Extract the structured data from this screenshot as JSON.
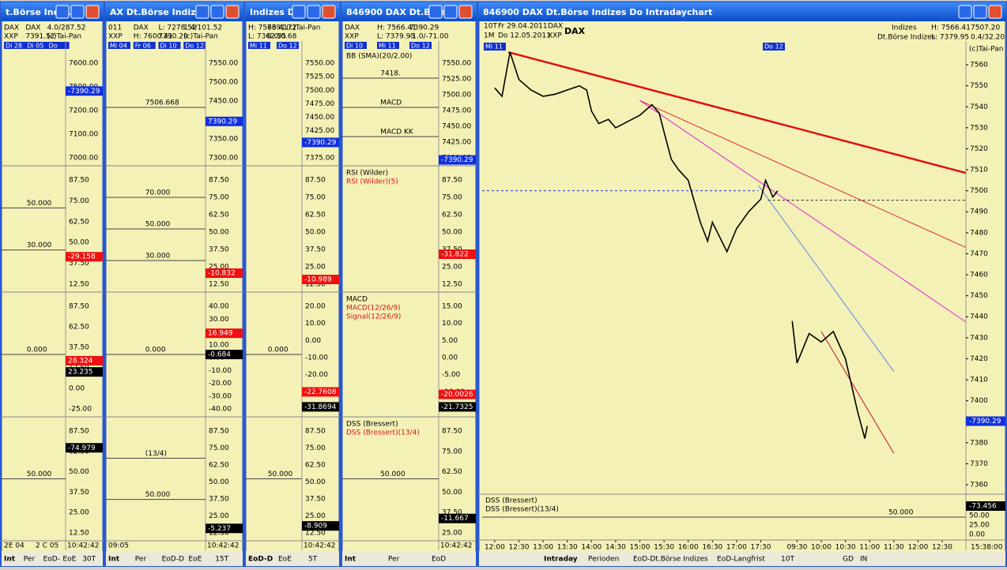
{
  "windows": [
    {
      "title": "t.Börse Indiz...",
      "header": [
        "DAX",
        "XXP",
        "DAX",
        "7391.52",
        "4.0/287.52",
        "(c)Tai-Pan"
      ],
      "dates": [
        "Di 28",
        "Di 05",
        "Do"
      ],
      "panels": [
        {
          "ticks": [
            "7600.00",
            "7500.00",
            "7200.00",
            "7100.00",
            "7000.00"
          ],
          "notes": [],
          "boxes": [
            {
              "text": "-7390.29",
              "color": "#1030e0"
            }
          ]
        },
        {
          "ticks": [
            "87.50",
            "75.00",
            "62.50",
            "50.00",
            "37.50",
            "12.50"
          ],
          "notes": [
            "50.000",
            "30.000"
          ],
          "boxes": [
            {
              "text": "-29.158",
              "color": "#f01010"
            }
          ]
        },
        {
          "ticks": [
            "87.50",
            "62.50",
            "37.50",
            "12.50",
            "0.00",
            "-25.00"
          ],
          "notes": [
            "0.000"
          ],
          "boxes": [
            {
              "text": "28.324",
              "color": "#f01010"
            },
            {
              "text": "23.235",
              "color": "#000000"
            }
          ]
        },
        {
          "ticks": [
            "87.50",
            "62.50",
            "50.00",
            "37.50",
            "25.00",
            "12.50"
          ],
          "notes": [
            "50.000"
          ],
          "boxes": [
            {
              "text": "-74.979",
              "color": "#000000"
            }
          ]
        }
      ],
      "bottom": [
        "2E 04",
        "2 C 05",
        "10:42:42"
      ],
      "tabs": [
        "Int",
        "Per",
        "EoD-",
        "EoE",
        "30T"
      ]
    },
    {
      "title": "AX Dt.Börse Indizes ...",
      "header": [
        "011",
        "XXP",
        "DAX",
        "H: 7600.41",
        "L: 7278.52",
        "7390.29",
        "1.4/101.52",
        "(c)Tai-Pan"
      ],
      "dates": [
        "Mi 04",
        "Fr 06",
        "Di 10",
        "Do 12"
      ],
      "panels": [
        {
          "ticks": [
            "7550.00",
            "7500.00",
            "7450.00",
            "7400.00",
            "7350.00",
            "7300.00"
          ],
          "notes": [
            "7506.668"
          ],
          "boxes": [
            {
              "text": "7390.29",
              "color": "#1030e0"
            }
          ]
        },
        {
          "ticks": [
            "87.50",
            "75.00",
            "62.50",
            "50.00",
            "37.50",
            "25.00",
            "12.50"
          ],
          "notes": [
            "70.000",
            "50.000",
            "30.000"
          ],
          "boxes": [
            {
              "text": "-10.832",
              "color": "#f01010"
            }
          ]
        },
        {
          "ticks": [
            "40.00",
            "30.00",
            "20.00",
            "10.00",
            "0.00",
            "-10.00",
            "-20.00",
            "-30.00",
            "-40.00"
          ],
          "notes": [
            "0.000"
          ],
          "boxes": [
            {
              "text": "16.949",
              "color": "#f01010"
            },
            {
              "text": "-0.684",
              "color": "#000000"
            }
          ]
        },
        {
          "ticks": [
            "87.50",
            "75.00",
            "62.50",
            "50.00",
            "37.50",
            "25.00",
            "12.50"
          ],
          "notes": [
            "(13/4)",
            "50.000"
          ],
          "boxes": [
            {
              "text": "-5.237",
              "color": "#000000"
            }
          ]
        }
      ],
      "bottom": [
        "09:05",
        "10:42:42"
      ],
      "tabs": [
        "Int",
        "Per",
        "EoD-D",
        "EoE",
        "15T"
      ]
    },
    {
      "title": "Indizes D...",
      "header": [
        "H: 7566.41",
        "L: 7362.55",
        "7391.72",
        "0.0/0.68",
        "(c)Tai-Pan"
      ],
      "dates": [
        "Mi 11",
        "Do 12"
      ],
      "panels": [
        {
          "ticks": [
            "7550.00",
            "7525.00",
            "7500.00",
            "7475.00",
            "7450.00",
            "7425.00",
            "7400.00",
            "7375.00"
          ],
          "notes": [],
          "boxes": [
            {
              "text": "-7390.29",
              "color": "#1030e0"
            }
          ]
        },
        {
          "ticks": [
            "87.50",
            "75.00",
            "62.50",
            "50.00",
            "37.50",
            "25.00",
            "12.50"
          ],
          "notes": [],
          "boxes": [
            {
              "text": "-10.989",
              "color": "#f01010"
            }
          ]
        },
        {
          "ticks": [
            "20.00",
            "10.00",
            "0.00",
            "-10.00",
            "-20.00",
            "-30.00",
            "-40.00"
          ],
          "notes": [
            "0.000"
          ],
          "boxes": [
            {
              "text": "-22.7608",
              "color": "#f01010"
            },
            {
              "text": "-31.8694",
              "color": "#000000"
            }
          ]
        },
        {
          "ticks": [
            "87.50",
            "75.00",
            "62.50",
            "50.00",
            "37.50",
            "25.00",
            "12.50"
          ],
          "notes": [
            "50.000"
          ],
          "boxes": [
            {
              "text": "-8.909",
              "color": "#000000"
            }
          ]
        }
      ],
      "bottom": [
        "10:42:42"
      ],
      "tabs": [
        "EoD-D",
        "EoE",
        "5T"
      ]
    },
    {
      "title": "846900 DAX Dt.Börse ...",
      "header": [
        "DAX",
        "XXP",
        "H: 7566.41",
        "L: 7379.95",
        "7390.29",
        "-1.0/-71.00"
      ],
      "dates": [
        "Di 10",
        "Mi 11",
        "Do 12"
      ],
      "panels": [
        {
          "titles": [
            "BB (SMA)(20/2.00)"
          ],
          "ticks": [
            "7550.00",
            "7525.00",
            "7500.00",
            "7475.00",
            "7450.00",
            "7425.00",
            "7400.00"
          ],
          "notes": [
            "7418.",
            "MACD",
            "MACD KK"
          ],
          "boxes": [
            {
              "text": "-7390.29",
              "color": "#1030e0"
            }
          ]
        },
        {
          "titles": [
            "RSI (Wilder)",
            "RSI (Wilder)(5)"
          ],
          "ticks": [
            "87.50",
            "75.00",
            "62.50",
            "50.00",
            "37.50",
            "25.00",
            "12.50"
          ],
          "notes": [],
          "boxes": [
            {
              "text": "-31.822",
              "color": "#f01010"
            }
          ]
        },
        {
          "titles": [
            "MACD",
            "MACD(12/26/9)",
            "Signal(12/26/9)"
          ],
          "ticks": [
            "15.00",
            "10.00",
            "5.00",
            "0.00",
            "-5.00",
            "-10.00",
            "-15.00"
          ],
          "notes": [],
          "boxes": [
            {
              "text": "-20.0026",
              "color": "#f01010"
            },
            {
              "text": "-21.7325",
              "color": "#000000"
            }
          ]
        },
        {
          "titles": [
            "DSS (Bressert)",
            "DSS (Bressert)(13/4)"
          ],
          "ticks": [
            "87.50",
            "75.00",
            "62.50",
            "50.00",
            "37.50",
            "25.00"
          ],
          "notes": [
            "50.000"
          ],
          "boxes": [
            {
              "text": "-11.667",
              "color": "#000000"
            }
          ]
        }
      ],
      "bottom": [
        "10:42:42"
      ],
      "tabs": [
        "Int",
        "Per",
        "EoD"
      ]
    }
  ],
  "main": {
    "title": "846900 DAX Dt.Börse Indizes Do Intradaychart",
    "header": [
      "10T",
      "Fr 29.04.2011",
      "1M",
      "Do 12.05.2011",
      "DAX",
      "XXP",
      "DAX",
      "Indizes",
      "Dt.Börse Indizes",
      "H: 7566.41",
      "L: 7379.95",
      "7507.20",
      "0.4/32.20",
      "(c)Tai-Pan"
    ],
    "dates": [
      "Mi 11",
      "Do 12"
    ],
    "chart": {
      "ylim": [
        7355.5,
        7571.3
      ],
      "xlim": [
        -0.52,
        19.48
      ],
      "yticks": [
        7560,
        7550,
        7540,
        7530,
        7520,
        7510,
        7500,
        7490,
        7480,
        7470,
        7460,
        7450,
        7440,
        7430,
        7420,
        7410,
        7400,
        7380,
        7370,
        7360
      ],
      "xticks": [
        {
          "value": 0,
          "label": "12:00"
        },
        {
          "value": 1,
          "label": "12:30"
        },
        {
          "value": 2,
          "label": "13:00"
        },
        {
          "value": 3,
          "label": "13:30"
        },
        {
          "value": 4,
          "label": "14:00"
        },
        {
          "value": 5,
          "label": "14:30"
        },
        {
          "value": 6,
          "label": "15:00"
        },
        {
          "value": 7,
          "label": "15:30"
        },
        {
          "value": 8,
          "label": "16:00"
        },
        {
          "value": 9,
          "label": "16:30"
        },
        {
          "value": 10,
          "label": "17:00"
        },
        {
          "value": 11,
          "label": "17:30"
        },
        {
          "value": 12.5,
          "label": "09:30"
        },
        {
          "value": 13.5,
          "label": "10:00"
        },
        {
          "value": 14.5,
          "label": "10:30"
        },
        {
          "value": 15.5,
          "label": "11:00"
        },
        {
          "value": 16.5,
          "label": "11:30"
        },
        {
          "value": 17.5,
          "label": "12:00"
        },
        {
          "value": 18.5,
          "label": "12:30"
        }
      ],
      "last": {
        "value": 7390.29,
        "label": "-7390.29"
      },
      "price": {
        "color": "#000000",
        "x": [
          0,
          0.3,
          0.63,
          1,
          1.5,
          2,
          2.5,
          3,
          3.5,
          3.8,
          4,
          4.3,
          4.7,
          5,
          5.5,
          6,
          6.5,
          6.8,
          7,
          7.3,
          7.6,
          8,
          8.2,
          8.5,
          8.8,
          9,
          9.3,
          9.6,
          10,
          10.5,
          11,
          11.2,
          11.5,
          11.7,
          null,
          12.3,
          12.5,
          13,
          13.5,
          14,
          14.5,
          14.8,
          15,
          15.3,
          15.4
        ],
        "y": [
          7549,
          7545,
          7566,
          7553,
          7548,
          7545,
          7546,
          7548,
          7550,
          7548,
          7538,
          7532,
          7534,
          7530,
          7533,
          7536,
          7541,
          7537,
          7528,
          7515,
          7510,
          7505,
          7497,
          7485,
          7476,
          7485,
          7478,
          7471,
          7482,
          7490,
          7496,
          7505,
          7497,
          7500,
          null,
          7438,
          7418,
          7432,
          7428,
          7433,
          7420,
          7405,
          7395,
          7382,
          7388
        ]
      },
      "lines": [
        {
          "color": "#e01010",
          "width": 2.5,
          "x": [
            0.56,
            19.48
          ],
          "y": [
            7566,
            7508.5
          ]
        },
        {
          "color": "#e03020",
          "width": 1,
          "x": [
            6,
            19.48
          ],
          "y": [
            7543,
            7473
          ]
        },
        {
          "color": "#e020e0",
          "width": 1,
          "x": [
            6,
            19.48
          ],
          "y": [
            7543,
            7437.5
          ]
        },
        {
          "color": "#6080f0",
          "width": 1,
          "x": [
            10.9,
            16.5
          ],
          "y": [
            7502.5,
            7414
          ]
        },
        {
          "color": "#c01030",
          "width": 1,
          "x": [
            13.5,
            16.5
          ],
          "y": [
            7433,
            7375
          ]
        },
        {
          "color": "#2030c0",
          "width": 1,
          "dash": true,
          "x": [
            -0.52,
            10.9
          ],
          "y": [
            7500,
            7500
          ]
        },
        {
          "color": "#202020",
          "width": 1,
          "dash": true,
          "x": [
            11.3,
            19.48
          ],
          "y": [
            7495.5,
            7495.5
          ]
        }
      ]
    },
    "dss": {
      "titles": [
        "DSS (Bressert)",
        "DSS (Bressert)(13/4)"
      ],
      "note": "50.000",
      "ticks": [
        "-73.456",
        "50.00",
        "25.00",
        "0.00"
      ]
    },
    "time": "15:38:00",
    "tabs": [
      "Intraday",
      "Perioden",
      "EoD-Dt.Börse Indizes",
      "EoD-Langfrist",
      "10T",
      "GD",
      "IN"
    ]
  }
}
